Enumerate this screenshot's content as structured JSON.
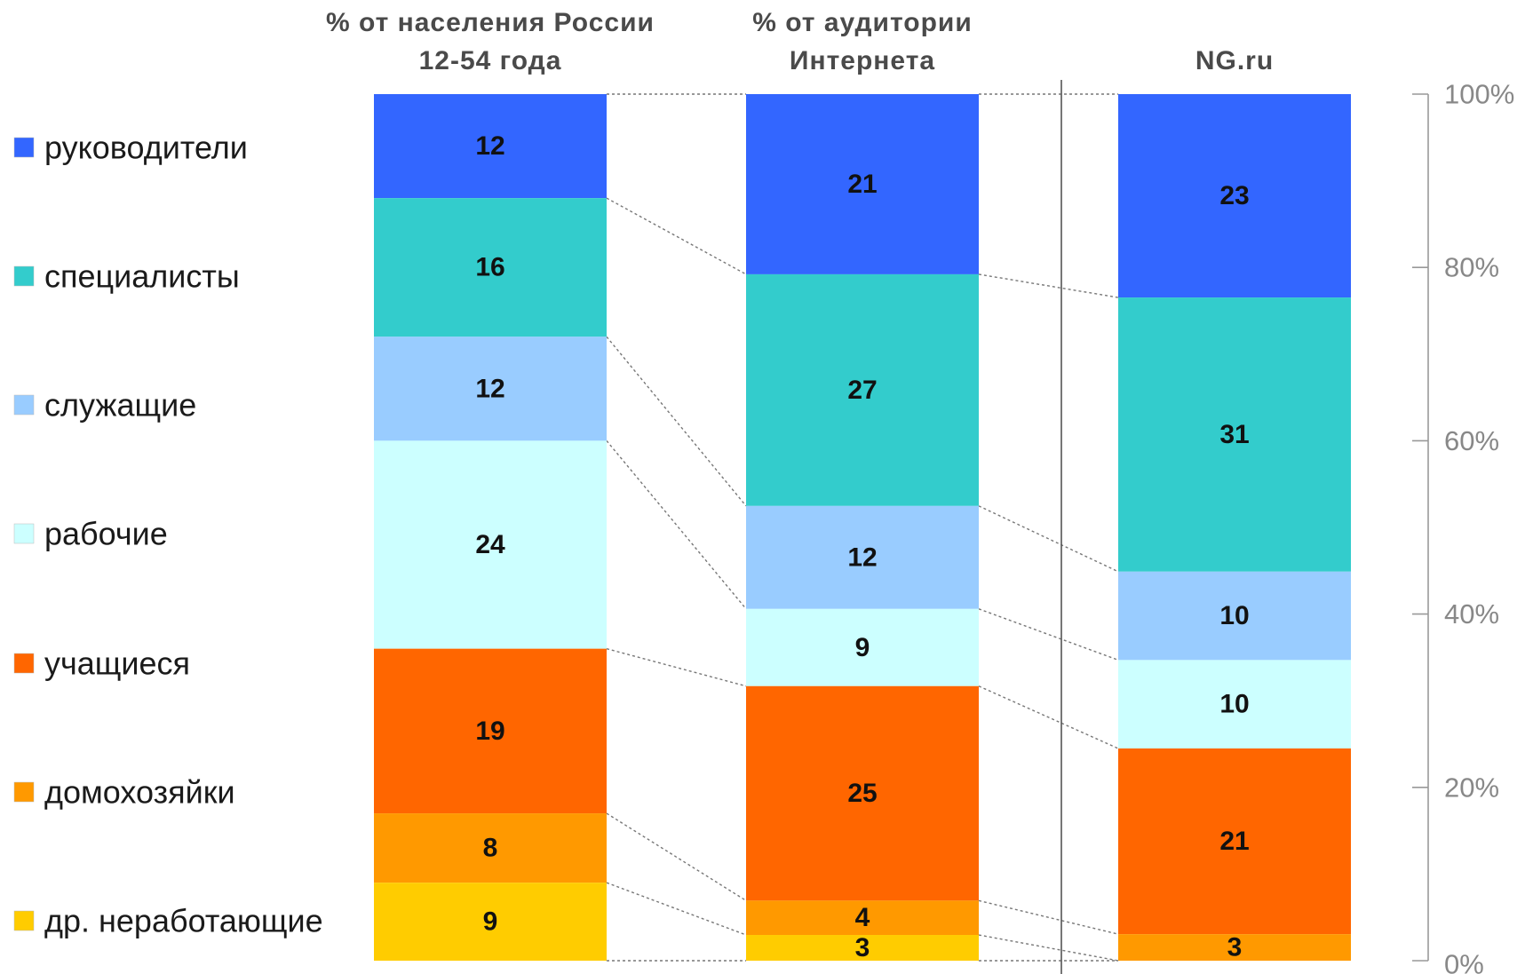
{
  "chart_data": {
    "type": "bar",
    "stacked": true,
    "normalized": true,
    "legend_position": "left",
    "grid": false,
    "categories": [
      [
        "% от населения России",
        "12-54 года"
      ],
      [
        "% от аудитории",
        "Интернета"
      ],
      [
        "NG.ru"
      ]
    ],
    "series": [
      {
        "name": "руководители",
        "color": "#3366ff",
        "values": [
          12,
          21,
          23
        ]
      },
      {
        "name": "специалисты",
        "color": "#33cccc",
        "values": [
          16,
          27,
          31
        ]
      },
      {
        "name": "служащие",
        "color": "#99ccff",
        "values": [
          12,
          12,
          10
        ]
      },
      {
        "name": "рабочие",
        "color": "#ccffff",
        "values": [
          24,
          9,
          10
        ]
      },
      {
        "name": "учащиеся",
        "color": "#ff6600",
        "values": [
          19,
          25,
          21
        ]
      },
      {
        "name": "домохозяйки",
        "color": "#ff9900",
        "values": [
          8,
          4,
          3
        ]
      },
      {
        "name": "др. неработающие",
        "color": "#ffcc00",
        "values": [
          9,
          3,
          null
        ]
      }
    ],
    "y_axis": {
      "side": "right",
      "ylim": [
        0,
        100
      ],
      "ticks": [
        "0%",
        "20%",
        "40%",
        "60%",
        "80%",
        "100%"
      ]
    },
    "separator_before_category": 2
  }
}
